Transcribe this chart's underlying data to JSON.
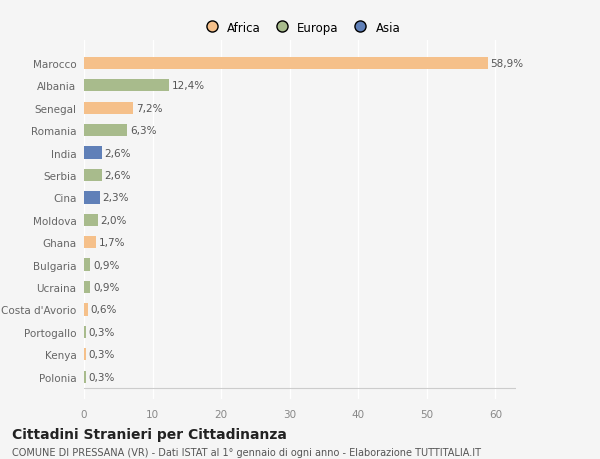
{
  "categories": [
    "Marocco",
    "Albania",
    "Senegal",
    "Romania",
    "India",
    "Serbia",
    "Cina",
    "Moldova",
    "Ghana",
    "Bulgaria",
    "Ucraina",
    "Costa d'Avorio",
    "Portogallo",
    "Kenya",
    "Polonia"
  ],
  "values": [
    58.9,
    12.4,
    7.2,
    6.3,
    2.6,
    2.6,
    2.3,
    2.0,
    1.7,
    0.9,
    0.9,
    0.6,
    0.3,
    0.3,
    0.3
  ],
  "labels": [
    "58,9%",
    "12,4%",
    "7,2%",
    "6,3%",
    "2,6%",
    "2,6%",
    "2,3%",
    "2,0%",
    "1,7%",
    "0,9%",
    "0,9%",
    "0,6%",
    "0,3%",
    "0,3%",
    "0,3%"
  ],
  "colors": [
    "#f5c08a",
    "#a8bb8c",
    "#f5c08a",
    "#a8bb8c",
    "#6080b8",
    "#a8bb8c",
    "#6080b8",
    "#a8bb8c",
    "#f5c08a",
    "#a8bb8c",
    "#a8bb8c",
    "#f5c08a",
    "#a8bb8c",
    "#f5c08a",
    "#a8bb8c"
  ],
  "legend_labels": [
    "Africa",
    "Europa",
    "Asia"
  ],
  "legend_colors": [
    "#f5c08a",
    "#a8bb8c",
    "#6080b8"
  ],
  "xlim": [
    0,
    63
  ],
  "xticks": [
    0,
    10,
    20,
    30,
    40,
    50,
    60
  ],
  "title": "Cittadini Stranieri per Cittadinanza",
  "subtitle": "COMUNE DI PRESSANA (VR) - Dati ISTAT al 1° gennaio di ogni anno - Elaborazione TUTTITALIA.IT",
  "background_color": "#f5f5f5",
  "plot_background": "#f5f5f5",
  "bar_height": 0.55,
  "label_fontsize": 7.5,
  "ytick_fontsize": 7.5,
  "xtick_fontsize": 7.5,
  "title_fontsize": 10,
  "subtitle_fontsize": 7,
  "legend_fontsize": 8.5
}
